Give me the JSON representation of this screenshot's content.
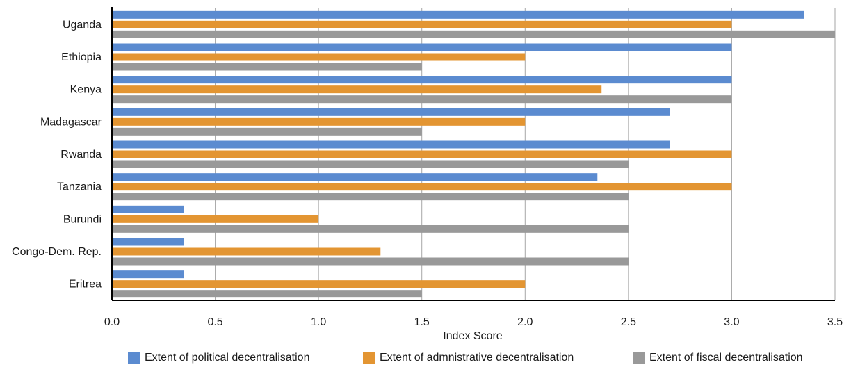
{
  "chart_data": {
    "type": "bar",
    "orientation": "horizontal",
    "categories": [
      "Uganda",
      "Ethiopia",
      "Kenya",
      "Madagascar",
      "Rwanda",
      "Tanzania",
      "Burundi",
      "Congo-Dem. Rep.",
      "Eritrea"
    ],
    "series": [
      {
        "name": "Extent of political decentralisation",
        "color": "#5b8bd0",
        "values": [
          3.35,
          3.0,
          3.0,
          2.7,
          2.7,
          2.35,
          0.35,
          0.35,
          0.35
        ]
      },
      {
        "name": "Extent of admnistrative decentralisation",
        "color": "#e39532",
        "values": [
          3.0,
          2.0,
          2.37,
          2.0,
          3.0,
          3.0,
          1.0,
          1.3,
          2.0
        ]
      },
      {
        "name": "Extent of fiscal decentralisation",
        "color": "#999999",
        "values": [
          3.5,
          1.5,
          3.0,
          1.5,
          2.5,
          2.5,
          2.5,
          2.5,
          1.5
        ]
      }
    ],
    "xlabel": "Index Score",
    "xlim": [
      0,
      3.5
    ],
    "xticks": [
      "0.0",
      "0.5",
      "1.0",
      "1.5",
      "2.0",
      "2.5",
      "3.0",
      "3.5"
    ],
    "grid": "vertical",
    "legend_position": "bottom"
  }
}
